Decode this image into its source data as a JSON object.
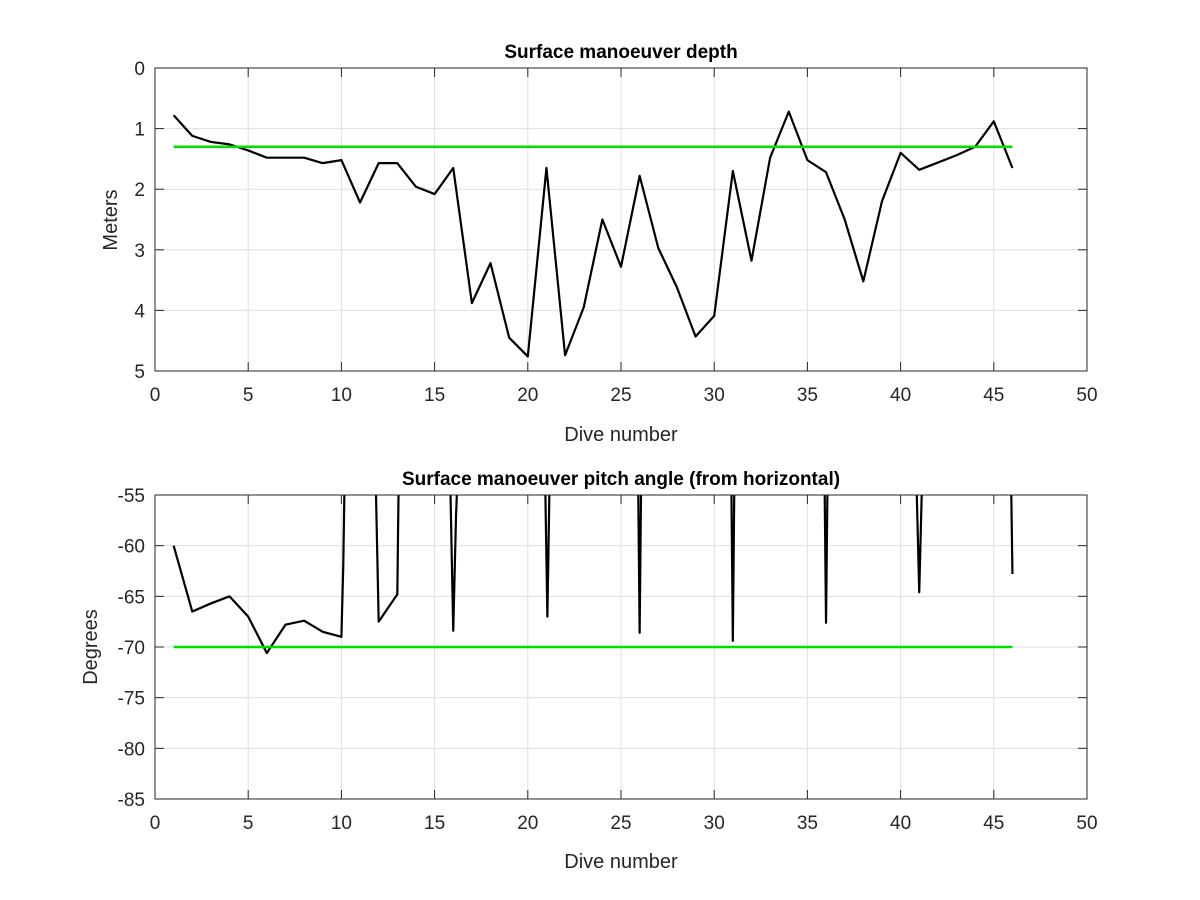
{
  "chart_data": [
    {
      "type": "line",
      "title": "Surface manoeuver depth",
      "xlabel": "Dive number",
      "ylabel": "Meters",
      "xlim": [
        0,
        50
      ],
      "ylim": [
        0,
        5
      ],
      "y_reversed": true,
      "grid": true,
      "xticks": [
        "0",
        "5",
        "10",
        "15",
        "20",
        "25",
        "30",
        "35",
        "40",
        "45",
        "50"
      ],
      "yticks": [
        "0",
        "1",
        "2",
        "3",
        "4",
        "5"
      ],
      "series": [
        {
          "color": "#000000",
          "x": [
            1,
            2,
            3,
            4,
            5,
            6,
            7,
            8,
            9,
            10,
            11,
            12,
            13,
            14,
            15,
            16,
            17,
            18,
            19,
            20,
            21,
            22,
            23,
            24,
            25,
            26,
            27,
            28,
            29,
            30,
            31,
            32,
            33,
            34,
            35,
            36,
            37,
            38,
            39,
            40,
            41,
            42,
            43,
            44,
            45,
            46
          ],
          "y": [
            0.78,
            1.12,
            1.22,
            1.26,
            1.36,
            1.48,
            1.48,
            1.48,
            1.57,
            1.52,
            2.22,
            1.57,
            1.57,
            1.96,
            2.08,
            1.65,
            3.88,
            3.22,
            4.45,
            4.76,
            1.65,
            4.74,
            3.95,
            2.5,
            3.28,
            1.78,
            2.97,
            3.62,
            4.43,
            4.09,
            1.7,
            3.18,
            1.48,
            0.72,
            1.52,
            1.72,
            2.5,
            3.52,
            2.2,
            1.4,
            1.68,
            1.56,
            1.44,
            1.3,
            0.88,
            1.65
          ]
        },
        {
          "color": "#00e000",
          "x": [
            1,
            46
          ],
          "y": [
            1.3,
            1.3
          ]
        }
      ]
    },
    {
      "type": "line",
      "title": "Surface manoeuver pitch angle (from horizontal)",
      "xlabel": "Dive number",
      "ylabel": "Degrees",
      "xlim": [
        0,
        50
      ],
      "ylim": [
        -85,
        -55
      ],
      "grid": true,
      "xticks": [
        "0",
        "5",
        "10",
        "15",
        "20",
        "25",
        "30",
        "35",
        "40",
        "45",
        "50"
      ],
      "yticks": [
        "-55",
        "-60",
        "-65",
        "-70",
        "-75",
        "-80",
        "-85"
      ],
      "series": [
        {
          "color": "#000000",
          "x": [
            1,
            2,
            3,
            4,
            5,
            6,
            7,
            8,
            9,
            10,
            10.1,
            10.2,
            11.8,
            12,
            13,
            13.05,
            13.1,
            15.8,
            16,
            16.15,
            16.3,
            20.9,
            21.05,
            21.2,
            25.9,
            26,
            26.1,
            30.9,
            31,
            31.1,
            35.9,
            36,
            36.1,
            40.8,
            41,
            41.2,
            45.9,
            46
          ],
          "y": [
            -60,
            -66.5,
            -65.7,
            -65,
            -67,
            -70.6,
            -67.8,
            -67.4,
            -68.5,
            -69,
            -62,
            -50,
            -50,
            -67.5,
            -64.8,
            -57,
            -50,
            -50,
            -68.4,
            -57,
            -50,
            -50,
            -67,
            -50,
            -50,
            -68.6,
            -50,
            -50,
            -69.4,
            -50,
            -50,
            -67.6,
            -50,
            -50,
            -64.6,
            -50,
            -50,
            -62.8
          ]
        },
        {
          "color": "#00e000",
          "x": [
            1,
            46
          ],
          "y": [
            -70,
            -70
          ]
        }
      ]
    }
  ]
}
